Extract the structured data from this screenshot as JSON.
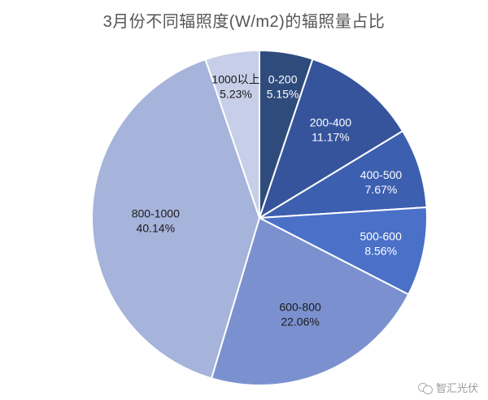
{
  "watermark": {
    "icon": "chat-bubbles-icon",
    "text": "智汇光伏"
  },
  "chart_data": {
    "type": "pie",
    "title": "3月份不同辐照度(W/m2)的辐照量占比",
    "categories": [
      "0-200",
      "200-400",
      "400-500",
      "500-600",
      "600-800",
      "800-1000",
      "1000以上"
    ],
    "values": [
      5.15,
      11.17,
      7.67,
      8.56,
      22.06,
      40.14,
      5.23
    ],
    "labels": [
      "5.15%",
      "11.17%",
      "7.67%",
      "8.56%",
      "22.06%",
      "40.14%",
      "5.23%"
    ],
    "colors": [
      "#2f4b7c",
      "#35549c",
      "#3c5fb0",
      "#4a70c8",
      "#7b91cf",
      "#a6b3da",
      "#c7cee7"
    ],
    "label_colors": [
      "#ffffff",
      "#ffffff",
      "#ffffff",
      "#ffffff",
      "#1a1a1a",
      "#1a1a1a",
      "#1a1a1a"
    ],
    "legend": "none"
  }
}
